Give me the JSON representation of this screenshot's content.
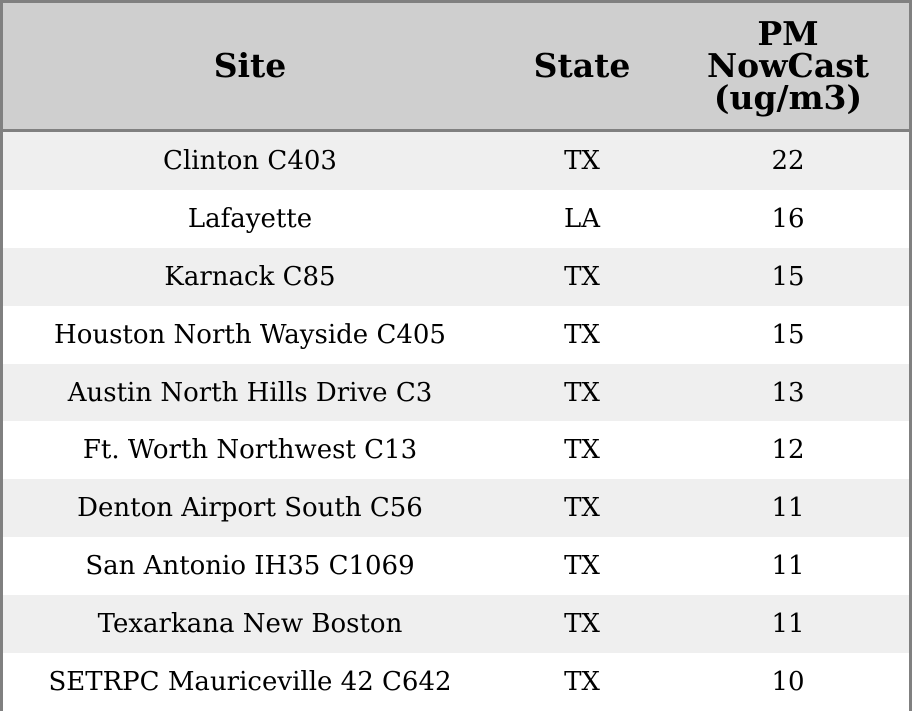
{
  "chart_data": {
    "type": "table",
    "columns": [
      "Site",
      "State",
      "PM NowCast (ug/m3)"
    ],
    "header_lines": {
      "site": [
        "Site"
      ],
      "state": [
        "State"
      ],
      "pm": [
        "PM",
        "NowCast",
        "(ug/m3)"
      ]
    },
    "rows": [
      {
        "site": "Clinton C403",
        "state": "TX",
        "pm": 22
      },
      {
        "site": "Lafayette",
        "state": "LA",
        "pm": 16
      },
      {
        "site": "Karnack C85",
        "state": "TX",
        "pm": 15
      },
      {
        "site": "Houston North Wayside C405",
        "state": "TX",
        "pm": 15
      },
      {
        "site": "Austin North Hills Drive C3",
        "state": "TX",
        "pm": 13
      },
      {
        "site": "Ft. Worth Northwest C13",
        "state": "TX",
        "pm": 12
      },
      {
        "site": "Denton Airport South C56",
        "state": "TX",
        "pm": 11
      },
      {
        "site": "San Antonio IH35 C1069",
        "state": "TX",
        "pm": 11
      },
      {
        "site": "Texarkana New Boston",
        "state": "TX",
        "pm": 11
      },
      {
        "site": "SETRPC Mauriceville 42 C642",
        "state": "TX",
        "pm": 10
      }
    ]
  },
  "colors": {
    "header_bg": "#cfcfcf",
    "stripe_bg": "#efefef",
    "plain_bg": "#ffffff",
    "border": "#808080",
    "text": "#000000"
  }
}
